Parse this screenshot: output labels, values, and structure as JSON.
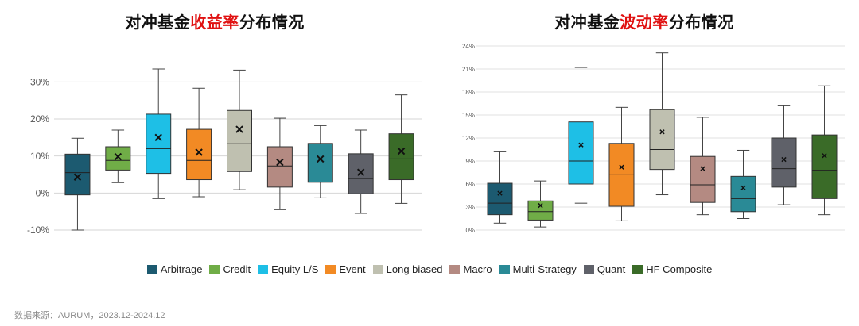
{
  "charts": {
    "returns": {
      "title_pre": "对冲基金",
      "title_hl": "收益率",
      "title_post": "分布情况"
    },
    "volatility": {
      "title_pre": "对冲基金",
      "title_hl": "波动率",
      "title_post": "分布情况"
    }
  },
  "legend": [
    {
      "label": "Arbitrage",
      "color": "#1c5a70"
    },
    {
      "label": "Credit",
      "color": "#70ad47"
    },
    {
      "label": "Equity L/S",
      "color": "#1ebfe6"
    },
    {
      "label": "Event",
      "color": "#f28a24"
    },
    {
      "label": "Long biased",
      "color": "#bfc0b0"
    },
    {
      "label": "Macro",
      "color": "#b48a82"
    },
    {
      "label": "Multi-Strategy",
      "color": "#2a8a96"
    },
    {
      "label": "Quant",
      "color": "#5f6169"
    },
    {
      "label": "HF Composite",
      "color": "#3a6b28"
    }
  ],
  "source": "数据来源：AURUM，2023.12-2024.12",
  "chart_data": [
    {
      "type": "box",
      "title": "对冲基金收益率分布情况",
      "ylim": [
        -10,
        35
      ],
      "yticks": [
        "-10%",
        "0%",
        "10%",
        "20%",
        "30%"
      ],
      "ytick_values": [
        -10,
        0,
        10,
        20,
        30
      ],
      "grid": true,
      "series": [
        {
          "name": "Arbitrage",
          "min": -10,
          "q1": -0.5,
          "median": 5.5,
          "q3": 10.5,
          "max": 14.8,
          "mean": 4.3
        },
        {
          "name": "Credit",
          "min": 2.8,
          "q1": 6.2,
          "median": 8.8,
          "q3": 12.5,
          "max": 17,
          "mean": 9.8
        },
        {
          "name": "Equity L/S",
          "min": -1.5,
          "q1": 5.3,
          "median": 12,
          "q3": 21.3,
          "max": 33.5,
          "mean": 15
        },
        {
          "name": "Event",
          "min": -1,
          "q1": 3.6,
          "median": 8.8,
          "q3": 17.2,
          "max": 28.3,
          "mean": 11
        },
        {
          "name": "Long biased",
          "min": 0.9,
          "q1": 5.8,
          "median": 13.3,
          "q3": 22.3,
          "max": 33.2,
          "mean": 17.2
        },
        {
          "name": "Macro",
          "min": -4.5,
          "q1": 1.6,
          "median": 7.3,
          "q3": 12.5,
          "max": 20.2,
          "mean": 8.3
        },
        {
          "name": "Multi-Strategy",
          "min": -1.3,
          "q1": 2.9,
          "median": 8.1,
          "q3": 13.4,
          "max": 18.2,
          "mean": 9.2
        },
        {
          "name": "Quant",
          "min": -5.5,
          "q1": -0.2,
          "median": 3.9,
          "q3": 10.6,
          "max": 17,
          "mean": 5.6
        },
        {
          "name": "HF Composite",
          "min": -2.8,
          "q1": 3.6,
          "median": 9.2,
          "q3": 16,
          "max": 26.5,
          "mean": 11.3
        }
      ]
    },
    {
      "type": "box",
      "title": "对冲基金波动率分布情况",
      "ylim": [
        0,
        24
      ],
      "yticks": [
        "0%",
        "3%",
        "6%",
        "9%",
        "12%",
        "15%",
        "18%",
        "21%",
        "24%"
      ],
      "ytick_values": [
        0,
        3,
        6,
        9,
        12,
        15,
        18,
        21,
        24
      ],
      "grid": true,
      "series": [
        {
          "name": "Arbitrage",
          "min": 0.9,
          "q1": 2,
          "median": 3.5,
          "q3": 6.1,
          "max": 10.2,
          "mean": 4.8
        },
        {
          "name": "Credit",
          "min": 0.4,
          "q1": 1.3,
          "median": 2.4,
          "q3": 3.8,
          "max": 6.4,
          "mean": 3.2
        },
        {
          "name": "Equity L/S",
          "min": 3.5,
          "q1": 6,
          "median": 9,
          "q3": 14.1,
          "max": 21.2,
          "mean": 11.1
        },
        {
          "name": "Event",
          "min": 1.2,
          "q1": 3.1,
          "median": 7.2,
          "q3": 11.3,
          "max": 16,
          "mean": 8.2
        },
        {
          "name": "Long biased",
          "min": 4.6,
          "q1": 7.9,
          "median": 10.5,
          "q3": 15.7,
          "max": 23.1,
          "mean": 12.8
        },
        {
          "name": "Macro",
          "min": 2,
          "q1": 3.6,
          "median": 5.9,
          "q3": 9.6,
          "max": 14.7,
          "mean": 8
        },
        {
          "name": "Multi-Strategy",
          "min": 1.5,
          "q1": 2.4,
          "median": 4.1,
          "q3": 7,
          "max": 10.4,
          "mean": 5.5
        },
        {
          "name": "Quant",
          "min": 3.3,
          "q1": 5.6,
          "median": 8,
          "q3": 12,
          "max": 16.2,
          "mean": 9.2
        },
        {
          "name": "HF Composite",
          "min": 2,
          "q1": 4.1,
          "median": 7.8,
          "q3": 12.4,
          "max": 18.8,
          "mean": 9.7
        }
      ]
    }
  ]
}
